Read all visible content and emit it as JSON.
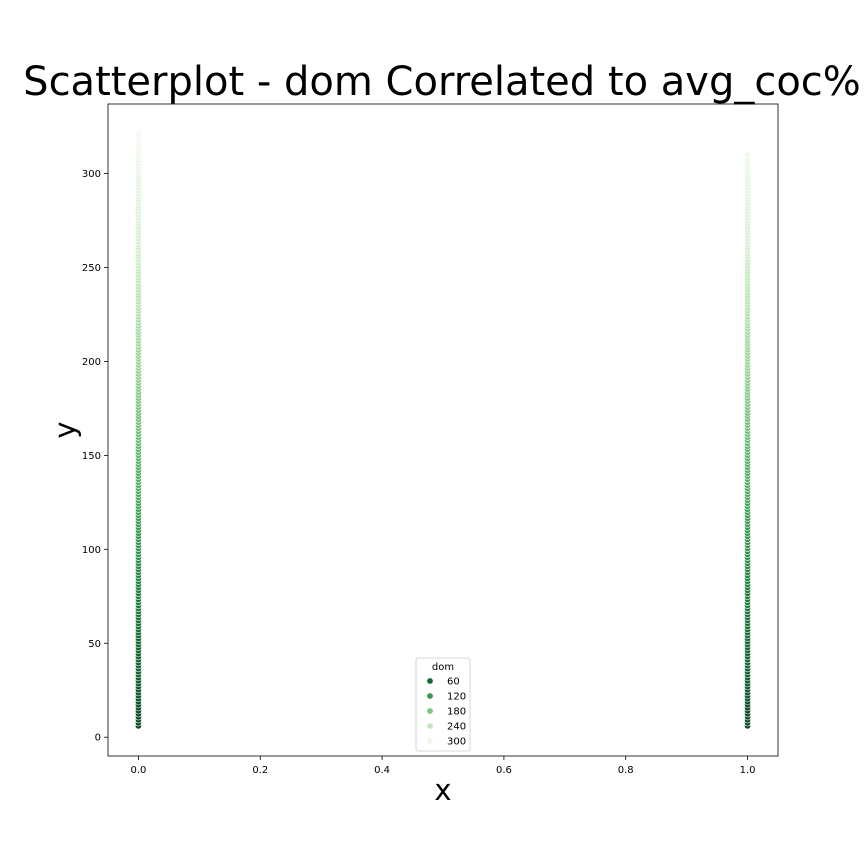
{
  "chart_data": {
    "type": "scatter",
    "title": "Scatterplot - dom Correlated to avg_coc%",
    "xlabel": "x",
    "ylabel": "y",
    "xlim": [
      -0.05,
      1.05
    ],
    "ylim": [
      -10,
      337
    ],
    "x_ticks": [
      0.0,
      0.2,
      0.4,
      0.6,
      0.8,
      1.0
    ],
    "x_tick_labels": [
      "0.0",
      "0.2",
      "0.4",
      "0.6",
      "0.8",
      "1.0"
    ],
    "y_ticks": [
      0,
      50,
      100,
      150,
      200,
      250,
      300
    ],
    "y_tick_labels": [
      "0",
      "50",
      "100",
      "150",
      "200",
      "250",
      "300"
    ],
    "grid": false,
    "hue": "dom",
    "colormap": [
      "#00441b",
      "#1a7a3c",
      "#4daf62",
      "#97d494",
      "#d5efcf",
      "#f7fcf5"
    ],
    "series": [
      {
        "x": 0,
        "y_min": 6,
        "y_max": 322
      },
      {
        "x": 1,
        "y_min": 6,
        "y_max": 311
      }
    ],
    "legend": {
      "title": "dom",
      "placement": "lower-center",
      "entries": [
        {
          "label": "60",
          "color": "#0b6b30"
        },
        {
          "label": "120",
          "color": "#339a52"
        },
        {
          "label": "180",
          "color": "#7bc67c"
        },
        {
          "label": "240",
          "color": "#c2e6bc"
        },
        {
          "label": "300",
          "color": "#edf8ea"
        }
      ]
    }
  }
}
